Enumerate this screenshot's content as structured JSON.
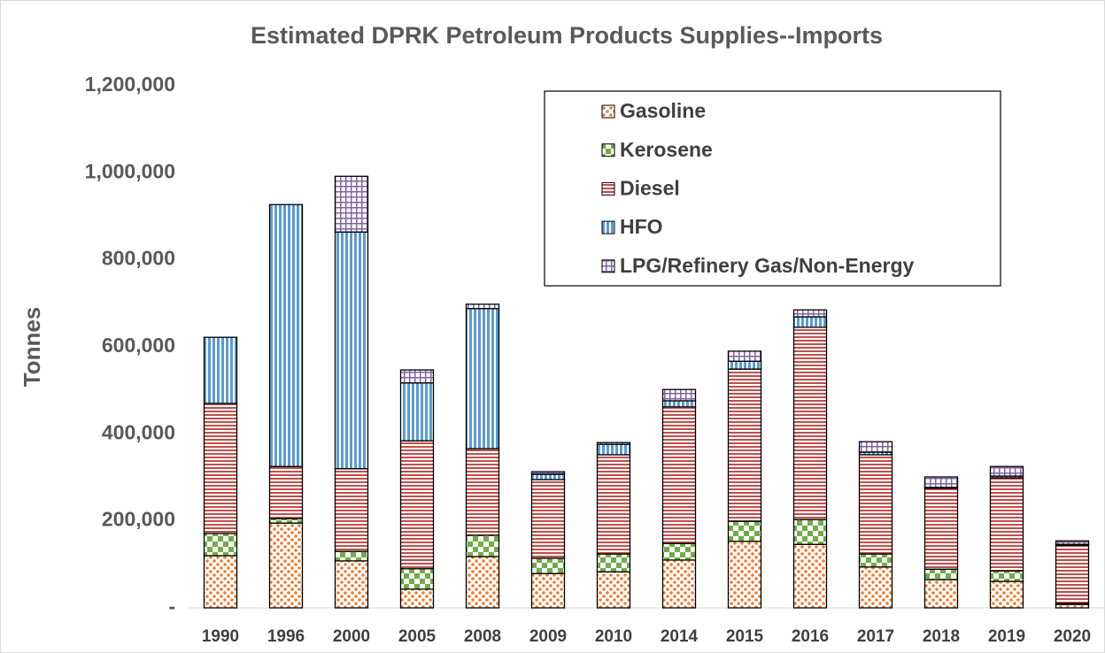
{
  "chart_data": {
    "type": "stacked_bar",
    "title": "Estimated DPRK Petroleum Products Supplies--Imports",
    "y_label": "Tonnes",
    "categories": [
      "1990",
      "1996",
      "2000",
      "2005",
      "2008",
      "2009",
      "2010",
      "2014",
      "2015",
      "2016",
      "2017",
      "2018",
      "2019",
      "2020"
    ],
    "series": [
      {
        "name": "Gasoline",
        "color": "#ed7d31",
        "values": [
          120000,
          195000,
          108000,
          43000,
          118000,
          79000,
          83000,
          110000,
          153000,
          146000,
          94000,
          65000,
          61000,
          8000
        ]
      },
      {
        "name": "Kerosene",
        "color": "#70ad47",
        "values": [
          51000,
          10000,
          22000,
          47000,
          49000,
          35000,
          41000,
          38000,
          46000,
          57000,
          30000,
          24000,
          24000,
          2000
        ]
      },
      {
        "name": "Diesel",
        "color": "#c0504d",
        "values": [
          299000,
          120000,
          190000,
          294000,
          199000,
          181000,
          228000,
          314000,
          350000,
          442000,
          228000,
          186000,
          214000,
          134000
        ]
      },
      {
        "name": "HFO",
        "color": "#5b9bd5",
        "values": [
          152000,
          602000,
          544000,
          133000,
          322000,
          12000,
          24000,
          14000,
          18000,
          24000,
          6000,
          2000,
          4000,
          2000
        ]
      },
      {
        "name": "LPG/Refinery Gas/Non-Energy",
        "color": "#8064a2",
        "values": [
          0,
          0,
          128000,
          30000,
          10000,
          6000,
          4000,
          26000,
          23000,
          16000,
          24000,
          24000,
          22000,
          8000
        ]
      }
    ],
    "ylim": [
      0,
      1200000
    ],
    "yticks": [
      {
        "value": 0,
        "label": "-"
      },
      {
        "value": 200000,
        "label": "200,000"
      },
      {
        "value": 400000,
        "label": "400,000"
      },
      {
        "value": 600000,
        "label": "600,000"
      },
      {
        "value": 800000,
        "label": "800,000"
      },
      {
        "value": 1000000,
        "label": "1,000,000"
      },
      {
        "value": 1200000,
        "label": "1,200,000"
      }
    ],
    "legend": "top-right"
  }
}
